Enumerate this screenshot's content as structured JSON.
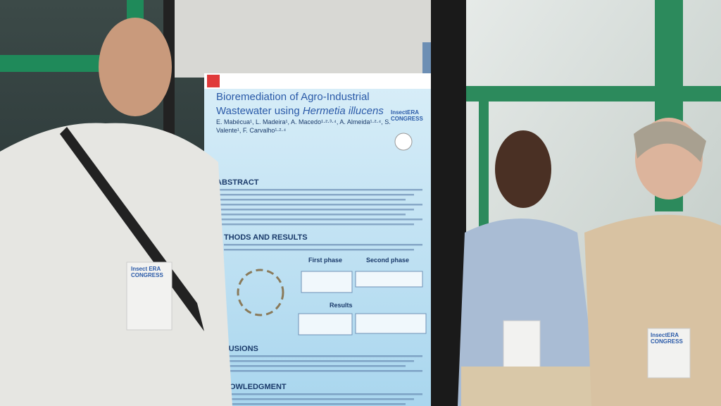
{
  "poster": {
    "title_line1": "Bioremediation of Agro-Industrial",
    "title_line2": "Wastewater using",
    "title_species": "Hermetia illucens",
    "authors_line1": "E. Mabécua¹, L. Madeira¹, A. Macedo¹·²·³·⁴, A. Almeida¹·²·⁴, S.",
    "authors_line2": "Valente¹, F. Carvalho¹·²·⁴",
    "logo_line1": "InsectERA",
    "logo_line2": "CONGRESS",
    "sections": [
      "ABSTRACT",
      "THODS AND RESULTS",
      "LUSIONS",
      "NOWLEDGMENT"
    ],
    "subheadings": [
      "First phase",
      "Second phase",
      "Results"
    ]
  },
  "badges": [
    {
      "line1": "Insect ERA",
      "line2": "CONGRESS"
    },
    {
      "line1": "InsectERA",
      "line2": "CONGRESS"
    }
  ]
}
